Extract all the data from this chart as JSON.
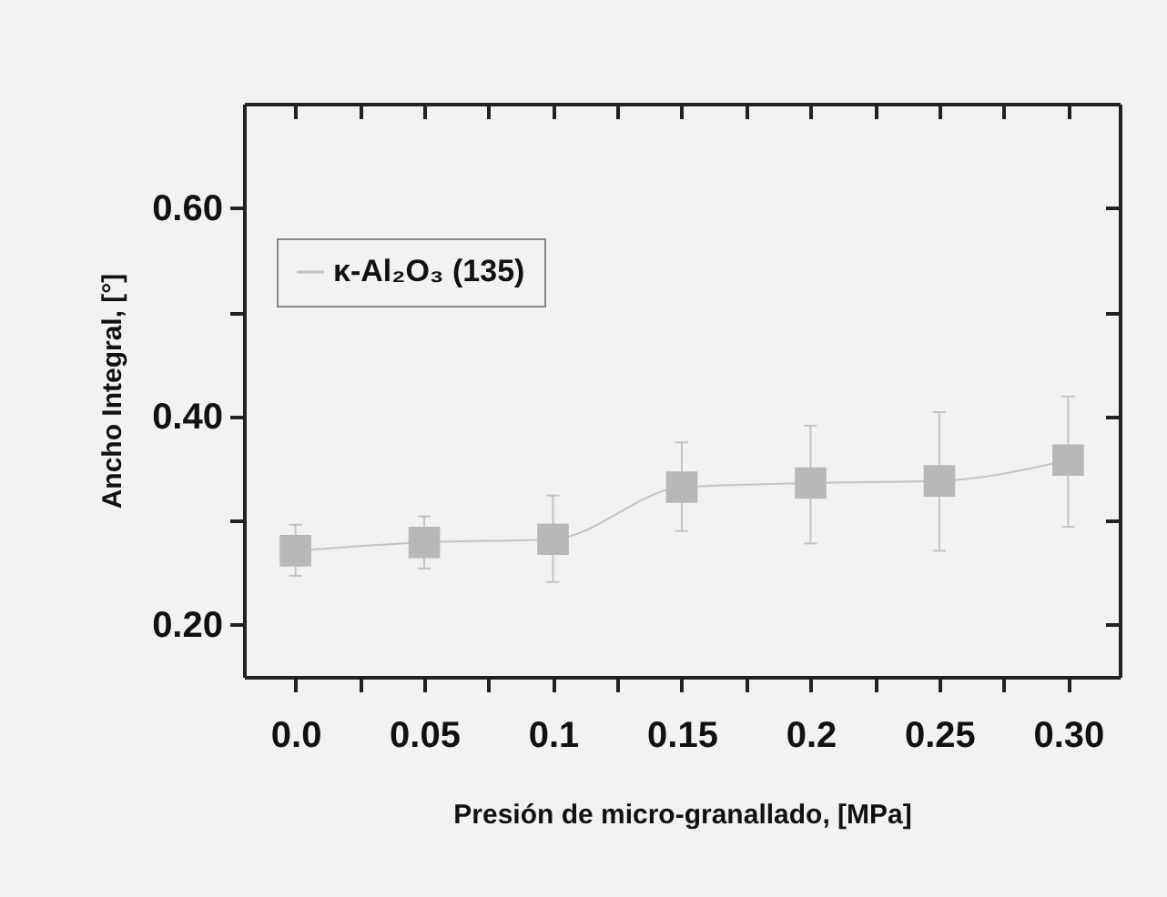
{
  "chart_data": {
    "type": "line",
    "xlabel": "Presión de micro-granallado,  [MPa]",
    "ylabel": "Ancho Integral,  [°]",
    "x": [
      0,
      0.05,
      0.1,
      0.15,
      0.2,
      0.25,
      0.3
    ],
    "series": [
      {
        "name": "κ-Al₂O₃ (135)",
        "color": "#b8b8b8",
        "values": [
          0.271,
          0.279,
          0.282,
          0.332,
          0.336,
          0.338,
          0.358
        ],
        "errors": [
          [
            0.247,
            0.296
          ],
          [
            0.254,
            0.304
          ],
          [
            0.241,
            0.324
          ],
          [
            0.29,
            0.375
          ],
          [
            0.278,
            0.391
          ],
          [
            0.271,
            0.404
          ],
          [
            0.294,
            0.419
          ]
        ]
      }
    ],
    "xlim": [
      -0.02,
      0.32
    ],
    "ylim": [
      0.15,
      0.7
    ],
    "xticks": [
      {
        "value": 0,
        "label": "0.0"
      },
      {
        "value": 0.025,
        "label": null
      },
      0.05,
      {
        "value": 0.075,
        "label": null
      },
      0.1,
      {
        "value": 0.125,
        "label": null
      },
      0.15,
      {
        "value": 0.175,
        "label": null
      },
      0.2,
      {
        "value": 0.225,
        "label": null
      },
      0.25,
      {
        "value": 0.275,
        "label": null
      },
      {
        "value": 0.3,
        "label": "0.30"
      }
    ],
    "yticks": [
      {
        "value": 0.2,
        "label": "0.20"
      },
      {
        "value": 0.3,
        "label": null
      },
      {
        "value": 0.4,
        "label": "0.40"
      },
      {
        "value": 0.5,
        "label": null
      },
      {
        "value": 0.6,
        "label": "0.60"
      }
    ],
    "legend": "top left",
    "marker": "square"
  }
}
